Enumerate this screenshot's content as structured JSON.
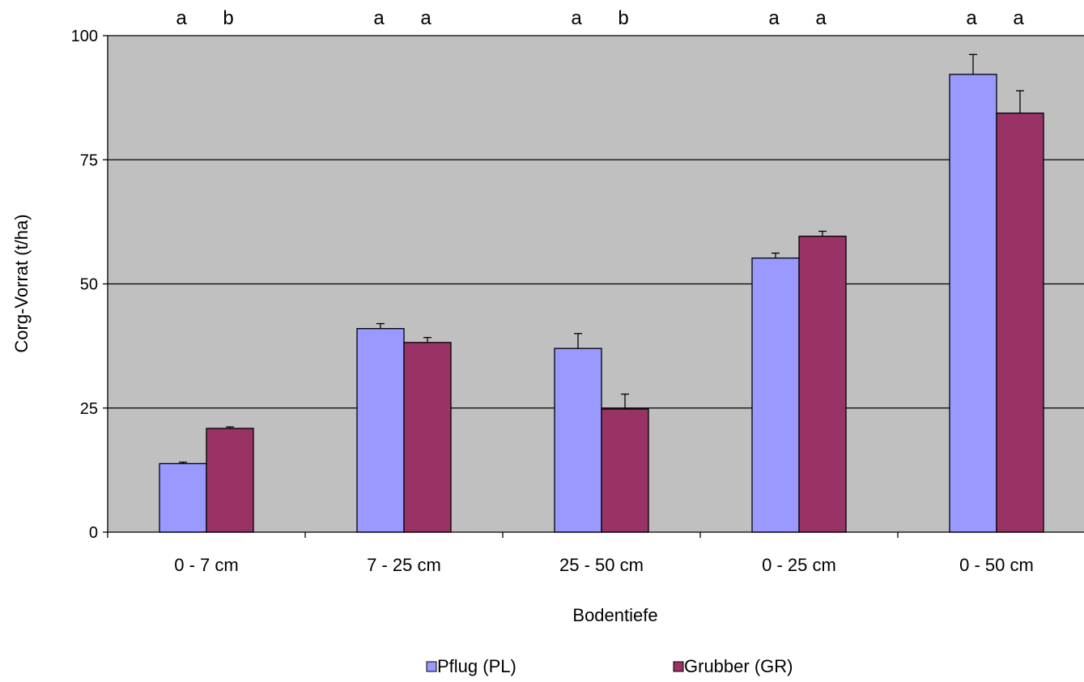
{
  "chart_data": {
    "type": "bar",
    "xlabel": "Bodentiefe",
    "ylabel": "Corg-Vorrat (t/ha)",
    "ylim": [
      0,
      100
    ],
    "yticks": [
      0,
      25,
      50,
      75,
      100
    ],
    "grid": true,
    "legend_position": "bottom",
    "categories": [
      "0 - 7 cm",
      "7 - 25 cm",
      "25 - 50 cm",
      "0 - 25 cm",
      "0 - 50 cm"
    ],
    "series": [
      {
        "name": "Pflug (PL)",
        "color": "#9999FF",
        "values": [
          13.8,
          41.0,
          37.0,
          55.2,
          92.2
        ],
        "errors": [
          0.3,
          1.0,
          3.0,
          1.0,
          4.0
        ],
        "significance": [
          "a",
          "a",
          "a",
          "a",
          "a"
        ]
      },
      {
        "name": "Grubber (GR)",
        "color": "#993366",
        "values": [
          20.9,
          38.2,
          24.8,
          59.6,
          84.4
        ],
        "errors": [
          0.3,
          1.0,
          3.0,
          1.0,
          4.5
        ],
        "significance": [
          "b",
          "a",
          "b",
          "a",
          "a"
        ]
      }
    ],
    "plot_background": "#C0C0C0"
  }
}
